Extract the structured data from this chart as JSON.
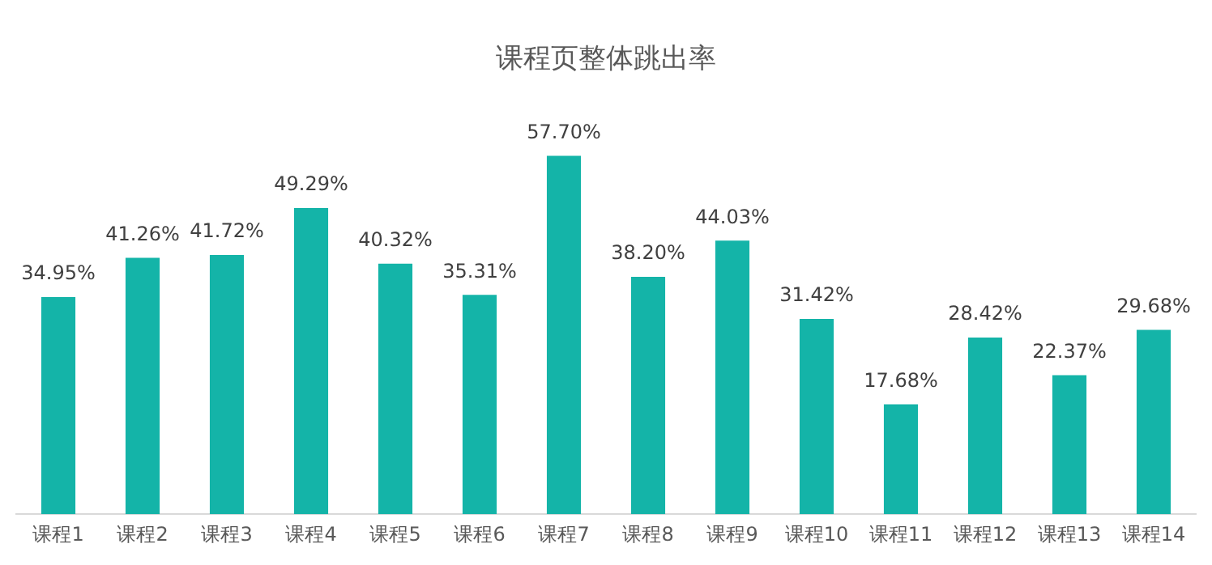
{
  "chart_data": {
    "type": "bar",
    "title": "课程页整体跳出率",
    "categories": [
      "课程1",
      "课程2",
      "课程3",
      "课程4",
      "课程5",
      "课程6",
      "课程7",
      "课程8",
      "课程9",
      "课程10",
      "课程11",
      "课程12",
      "课程13",
      "课程14"
    ],
    "values": [
      34.95,
      41.26,
      41.72,
      49.29,
      40.32,
      35.31,
      57.7,
      38.2,
      44.03,
      31.42,
      17.68,
      28.42,
      22.37,
      29.68
    ],
    "value_labels": [
      "34.95%",
      "41.26%",
      "41.72%",
      "49.29%",
      "40.32%",
      "35.31%",
      "57.70%",
      "38.20%",
      "44.03%",
      "31.42%",
      "17.68%",
      "28.42%",
      "22.37%",
      "29.68%"
    ],
    "color": "#14b4a8",
    "grid": false,
    "legend": false
  }
}
